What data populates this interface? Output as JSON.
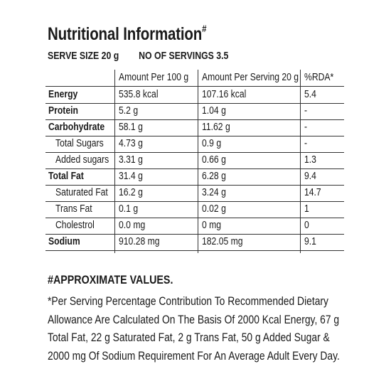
{
  "title": "Nutritional Information",
  "title_mark": "#",
  "serve_size": "SERVE SIZE 20 g",
  "servings": "NO OF SERVINGS 3.5",
  "table": {
    "headers": [
      "",
      "Amount Per 100 g",
      "Amount Per Serving 20 g",
      "%RDA*"
    ],
    "rows": [
      {
        "label": "Energy",
        "bold": true,
        "indent": false,
        "per100": "535.8 kcal",
        "perServing": "107.16 kcal",
        "rda": "5.4"
      },
      {
        "label": "Protein",
        "bold": true,
        "indent": false,
        "per100": "5.2 g",
        "perServing": "1.04 g",
        "rda": "-"
      },
      {
        "label": "Carbohydrate",
        "bold": true,
        "indent": false,
        "per100": "58.1 g",
        "perServing": "11.62 g",
        "rda": "-"
      },
      {
        "label": "Total Sugars",
        "bold": false,
        "indent": true,
        "per100": "4.73 g",
        "perServing": "0.9 g",
        "rda": "-"
      },
      {
        "label": "Added sugars",
        "bold": false,
        "indent": true,
        "per100": "3.31 g",
        "perServing": "0.66 g",
        "rda": "1.3"
      },
      {
        "label": "Total Fat",
        "bold": true,
        "indent": false,
        "per100": "31.4 g",
        "perServing": "6.28 g",
        "rda": "9.4"
      },
      {
        "label": "Saturated Fat",
        "bold": false,
        "indent": true,
        "per100": "16.2 g",
        "perServing": "3.24 g",
        "rda": "14.7"
      },
      {
        "label": "Trans Fat",
        "bold": false,
        "indent": true,
        "per100": "0.1 g",
        "perServing": "0.02 g",
        "rda": "1"
      },
      {
        "label": "Cholestrol",
        "bold": false,
        "indent": true,
        "per100": "0.0 mg",
        "perServing": "0 mg",
        "rda": "0"
      },
      {
        "label": "Sodium",
        "bold": true,
        "indent": false,
        "per100": "910.28 mg",
        "perServing": "182.05 mg",
        "rda": "9.1"
      }
    ]
  },
  "approx_heading": "#APPROXIMATE VALUES.",
  "footnote_lines": [
    "*Per Serving Percentage Contribution To Recommended Dietary",
    "Allowance Are Calculated On The Basis Of 2000 Kcal Energy, 67 g",
    "Total Fat, 22 g Saturated Fat, 2 g Trans Fat, 50 g Added Sugar &",
    "2000 mg Of Sodium Requirement For An Average Adult Every Day."
  ]
}
